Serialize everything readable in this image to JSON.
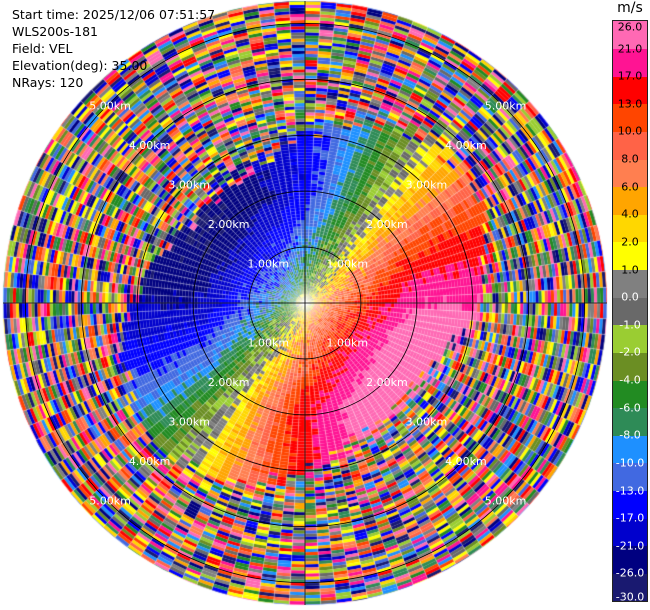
{
  "header": {
    "start_time": "Start time: 2025/12/06 07:51:57",
    "site": "WLS200s-181",
    "field": "Field: VEL",
    "elevation": "Elevation(deg): 35.00",
    "nrays": "NRays: 120"
  },
  "ppi": {
    "field": "VEL",
    "nrays": 120,
    "elevation_deg": 35.0,
    "range_rings_km": [
      1,
      2,
      3,
      4,
      5
    ],
    "range_labels": [
      "1.00km",
      "2.00km",
      "3.00km",
      "4.00km",
      "5.00km"
    ]
  },
  "colorbar": {
    "unit": "m/s",
    "colors": [
      "#191970",
      "#000080",
      "#0000cd",
      "#0000ff",
      "#4169e1",
      "#1e90ff",
      "#2e8b57",
      "#228b22",
      "#6b8e23",
      "#9acd32",
      "#696969",
      "#808080",
      "#ffff00",
      "#ffd700",
      "#ffa500",
      "#ff7f50",
      "#ff6347",
      "#ff4500",
      "#ff0000",
      "#ff1493",
      "#ff69b4"
    ],
    "tick_labels": [
      "-30.0",
      "-26.0",
      "-21.0",
      "-17.0",
      "-13.0",
      "-10.0",
      "-8.0",
      "-6.0",
      "-4.0",
      "-2.0",
      "-1.0",
      "0.0",
      "1.0",
      "2.0",
      "4.0",
      "6.0",
      "8.0",
      "10.0",
      "13.0",
      "17.0",
      "21.0",
      "26.0"
    ]
  }
}
